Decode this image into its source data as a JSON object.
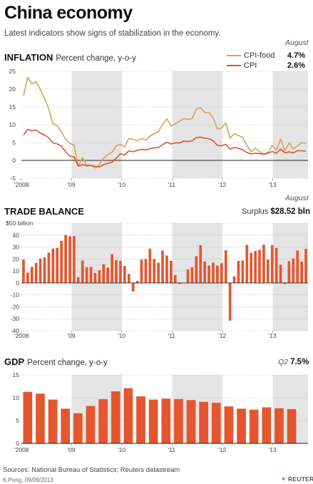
{
  "header": {
    "title": "China economy",
    "subtitle": "Latest indicators show signs of stabilization in the economy."
  },
  "colors": {
    "cpi": "#d9542c",
    "cpi_food": "#d4a35a",
    "bar": "#e4562f",
    "shade": "#e4e4e4"
  },
  "inflation": {
    "title": "INFLATION",
    "subtitle": "Percent change, y-o-y",
    "note": "August",
    "legend": [
      {
        "name": "CPI-food",
        "value": "4.7%"
      },
      {
        "name": "CPI",
        "value": "2.6%"
      }
    ]
  },
  "trade": {
    "title": "TRADE BALANCE",
    "note": "August",
    "highlight_label": "Surplus",
    "highlight_value": "$28.52 bln"
  },
  "gdp": {
    "title": "GDP",
    "subtitle": "Percent change, y-o-y",
    "highlight_label": "Q2",
    "highlight_value": "7.5%"
  },
  "footer": {
    "sources": "Sources: National Bureau of Statistics; Reuters datastream",
    "credit": "K.Pong, 09/09/2013",
    "logo": "REUTERS"
  },
  "chart_data": [
    {
      "type": "line",
      "title": "INFLATION",
      "ylim": [
        -5,
        25
      ],
      "yticks": [
        -5,
        0,
        5,
        10,
        15,
        20,
        25
      ],
      "x_range": [
        "2008-01",
        "2013-08"
      ],
      "xtick_labels": [
        "'2008",
        "'09",
        "'10",
        "'11",
        "'12",
        "'13"
      ],
      "shaded_years": [
        "2009",
        "2011",
        "2013"
      ],
      "grid": true,
      "series": [
        {
          "name": "CPI-food",
          "values": [
            18.2,
            23.3,
            21.4,
            22.1,
            19.9,
            17.3,
            14.4,
            10.3,
            9.7,
            8.0,
            5.9,
            4.8,
            4.2,
            -1.7,
            0.8,
            -1.3,
            -1.4,
            -2.1,
            -1.2,
            0.6,
            1.6,
            2.3,
            4.1,
            4.5,
            3.7,
            6.2,
            5.9,
            5.5,
            6.1,
            5.7,
            6.8,
            7.5,
            8.0,
            10.1,
            11.7,
            9.6,
            10.3,
            11.0,
            11.7,
            11.5,
            11.7,
            14.4,
            14.8,
            13.4,
            13.4,
            11.9,
            8.8,
            9.1,
            10.5,
            6.2,
            7.5,
            7.0,
            6.4,
            4.2,
            2.4,
            3.4,
            2.5,
            1.8,
            2.2,
            4.2,
            2.9,
            6.0,
            2.7,
            4.9,
            3.2,
            4.0,
            5.0,
            4.7
          ],
          "unit": "%"
        },
        {
          "name": "CPI",
          "values": [
            7.1,
            8.7,
            8.3,
            8.5,
            7.7,
            7.1,
            6.3,
            4.9,
            4.6,
            4.0,
            2.4,
            1.2,
            1.0,
            -1.6,
            -1.2,
            -1.5,
            -1.4,
            -1.7,
            -1.8,
            -1.2,
            -0.8,
            -0.5,
            0.6,
            1.9,
            1.5,
            2.7,
            2.4,
            2.8,
            3.1,
            2.9,
            3.3,
            3.5,
            3.6,
            4.4,
            5.1,
            4.6,
            4.9,
            4.9,
            5.4,
            5.3,
            5.5,
            6.4,
            6.5,
            6.2,
            6.1,
            5.5,
            4.2,
            4.1,
            4.5,
            3.2,
            3.6,
            3.4,
            3.0,
            2.2,
            1.8,
            2.0,
            1.9,
            1.7,
            2.0,
            2.5,
            2.0,
            3.2,
            2.1,
            2.4,
            2.1,
            2.7,
            2.7,
            2.6
          ],
          "unit": "%"
        }
      ]
    },
    {
      "type": "bar",
      "title": "TRADE BALANCE",
      "ylabel": "$50 billion",
      "ylim": [
        -40,
        50
      ],
      "yticks": [
        -40,
        -30,
        -20,
        -10,
        0,
        10,
        20,
        30,
        40,
        50
      ],
      "x_range": [
        "2008-01",
        "2013-08"
      ],
      "xtick_labels": [
        "'2008",
        "'09",
        "'10",
        "'11",
        "'12",
        "'13"
      ],
      "shaded_years": [
        "2009",
        "2011",
        "2013"
      ],
      "grid": true,
      "series": [
        {
          "name": "Trade balance",
          "values": [
            19.5,
            8.6,
            13.4,
            16.7,
            20.2,
            21.3,
            25.3,
            28.7,
            29.3,
            35.2,
            40.1,
            39.0,
            39.1,
            4.8,
            18.6,
            13.1,
            13.4,
            8.3,
            10.6,
            15.7,
            12.9,
            24.0,
            19.1,
            18.4,
            14.2,
            7.6,
            -7.2,
            1.7,
            19.5,
            20.0,
            28.7,
            20.0,
            16.9,
            27.1,
            22.9,
            18.4,
            6.5,
            -0.9,
            0.1,
            11.4,
            13.1,
            22.3,
            31.5,
            17.8,
            14.5,
            17.0,
            14.5,
            16.5,
            27.3,
            -31.5,
            5.4,
            18.4,
            18.7,
            31.7,
            25.1,
            26.7,
            27.7,
            32.0,
            19.6,
            31.6,
            29.2,
            15.2,
            -0.9,
            18.2,
            20.4,
            27.1,
            17.8,
            28.5
          ],
          "unit": "$ billion"
        }
      ]
    },
    {
      "type": "bar",
      "title": "GDP",
      "ylim": [
        0,
        15
      ],
      "yticks": [
        0,
        5,
        10,
        15
      ],
      "categories": [
        "2008Q1",
        "2008Q2",
        "2008Q3",
        "2008Q4",
        "2009Q1",
        "2009Q2",
        "2009Q3",
        "2009Q4",
        "2010Q1",
        "2010Q2",
        "2010Q3",
        "2010Q4",
        "2011Q1",
        "2011Q2",
        "2011Q3",
        "2011Q4",
        "2012Q1",
        "2012Q2",
        "2012Q3",
        "2012Q4",
        "2013Q1",
        "2013Q2"
      ],
      "xtick_labels": [
        "'2008",
        "'09",
        "'10",
        "'11",
        "'12",
        "'13"
      ],
      "shaded_years": [
        "2009",
        "2011",
        "2013"
      ],
      "grid": true,
      "series": [
        {
          "name": "GDP growth",
          "values": [
            11.3,
            10.9,
            9.6,
            7.6,
            6.6,
            8.2,
            9.7,
            11.4,
            12.1,
            10.3,
            9.6,
            9.8,
            9.7,
            9.5,
            9.1,
            8.9,
            8.1,
            7.6,
            7.4,
            7.9,
            7.7,
            7.5
          ],
          "unit": "%"
        }
      ]
    }
  ]
}
